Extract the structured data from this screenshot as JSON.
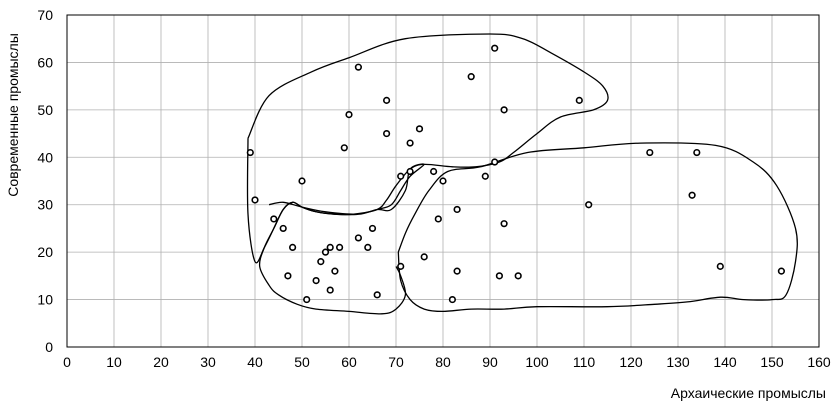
{
  "chart_data": {
    "type": "scatter",
    "title": "",
    "xlabel": "Архаические промыслы",
    "ylabel": "Современные промыслы",
    "xlim": [
      0,
      160
    ],
    "ylim": [
      0,
      70
    ],
    "xticks": [
      0,
      10,
      20,
      30,
      40,
      50,
      60,
      70,
      80,
      90,
      100,
      110,
      120,
      130,
      140,
      150,
      160
    ],
    "yticks": [
      0,
      10,
      20,
      30,
      40,
      50,
      60,
      70
    ],
    "grid": true,
    "legend": "none",
    "points": [
      {
        "x": 39,
        "y": 41
      },
      {
        "x": 40,
        "y": 31
      },
      {
        "x": 44,
        "y": 27
      },
      {
        "x": 46,
        "y": 25
      },
      {
        "x": 47,
        "y": 15
      },
      {
        "x": 48,
        "y": 21
      },
      {
        "x": 50,
        "y": 35
      },
      {
        "x": 51,
        "y": 10
      },
      {
        "x": 53,
        "y": 14
      },
      {
        "x": 54,
        "y": 18
      },
      {
        "x": 55,
        "y": 20
      },
      {
        "x": 56,
        "y": 21
      },
      {
        "x": 56,
        "y": 12
      },
      {
        "x": 57,
        "y": 16
      },
      {
        "x": 58,
        "y": 21
      },
      {
        "x": 59,
        "y": 42
      },
      {
        "x": 60,
        "y": 49
      },
      {
        "x": 62,
        "y": 23
      },
      {
        "x": 62,
        "y": 59
      },
      {
        "x": 64,
        "y": 21
      },
      {
        "x": 65,
        "y": 25
      },
      {
        "x": 66,
        "y": 11
      },
      {
        "x": 68,
        "y": 45
      },
      {
        "x": 68,
        "y": 52
      },
      {
        "x": 71,
        "y": 17
      },
      {
        "x": 71,
        "y": 36
      },
      {
        "x": 73,
        "y": 37
      },
      {
        "x": 73,
        "y": 43
      },
      {
        "x": 75,
        "y": 46
      },
      {
        "x": 76,
        "y": 19
      },
      {
        "x": 78,
        "y": 37
      },
      {
        "x": 79,
        "y": 27
      },
      {
        "x": 80,
        "y": 35
      },
      {
        "x": 82,
        "y": 10
      },
      {
        "x": 83,
        "y": 16
      },
      {
        "x": 83,
        "y": 29
      },
      {
        "x": 86,
        "y": 57
      },
      {
        "x": 89,
        "y": 36
      },
      {
        "x": 91,
        "y": 63
      },
      {
        "x": 91,
        "y": 39
      },
      {
        "x": 92,
        "y": 15
      },
      {
        "x": 93,
        "y": 26
      },
      {
        "x": 93,
        "y": 50
      },
      {
        "x": 96,
        "y": 15
      },
      {
        "x": 109,
        "y": 52
      },
      {
        "x": 111,
        "y": 30
      },
      {
        "x": 124,
        "y": 41
      },
      {
        "x": 133,
        "y": 32
      },
      {
        "x": 134,
        "y": 41
      },
      {
        "x": 139,
        "y": 17
      },
      {
        "x": 152,
        "y": 16
      }
    ],
    "regions": [
      {
        "shape": "upper-left",
        "path": [
          [
            38.5,
            44
          ],
          [
            43,
            53
          ],
          [
            52,
            58
          ],
          [
            60,
            61
          ],
          [
            72,
            65
          ],
          [
            90,
            66
          ],
          [
            97,
            65
          ],
          [
            103,
            62
          ],
          [
            110,
            58
          ],
          [
            114,
            55
          ],
          [
            115,
            52
          ],
          [
            112,
            50
          ],
          [
            105,
            48.5
          ],
          [
            100,
            45
          ],
          [
            95,
            41
          ],
          [
            92,
            39
          ],
          [
            87,
            38
          ],
          [
            82,
            38
          ],
          [
            76,
            38.5
          ],
          [
            73,
            37.5
          ],
          [
            70,
            34
          ],
          [
            68,
            31
          ],
          [
            66,
            29
          ],
          [
            61,
            28
          ],
          [
            57,
            28
          ],
          [
            53,
            28.5
          ],
          [
            50,
            29.5
          ],
          [
            48,
            30.5
          ],
          [
            46,
            29
          ],
          [
            44,
            25
          ],
          [
            42,
            21
          ],
          [
            40,
            18
          ],
          [
            38.5,
            28
          ],
          [
            38.5,
            44
          ]
        ]
      },
      {
        "shape": "lower-right",
        "path": [
          [
            70.5,
            20
          ],
          [
            72,
            24
          ],
          [
            74,
            28
          ],
          [
            77,
            33
          ],
          [
            81,
            37
          ],
          [
            88,
            38
          ],
          [
            98,
            41
          ],
          [
            110,
            42
          ],
          [
            122,
            43
          ],
          [
            138,
            42.5
          ],
          [
            146,
            39
          ],
          [
            151,
            34
          ],
          [
            155,
            25
          ],
          [
            155,
            18
          ],
          [
            153,
            11
          ],
          [
            150,
            10
          ],
          [
            144,
            10
          ],
          [
            139,
            10.5
          ],
          [
            132,
            9.5
          ],
          [
            125,
            9
          ],
          [
            115,
            8.5
          ],
          [
            100,
            8.5
          ],
          [
            93,
            8
          ],
          [
            86,
            8
          ],
          [
            80,
            7.5
          ],
          [
            76,
            8
          ],
          [
            73,
            10
          ],
          [
            71,
            14
          ],
          [
            70.5,
            20
          ]
        ]
      },
      {
        "shape": "lower-left",
        "path": [
          [
            43,
            30
          ],
          [
            46,
            30.5
          ],
          [
            50,
            29.5
          ],
          [
            55,
            28.5
          ],
          [
            62,
            28
          ],
          [
            66,
            29
          ],
          [
            69,
            29
          ],
          [
            72,
            33
          ],
          [
            73,
            37.5
          ],
          [
            76,
            38.5
          ],
          [
            73,
            36
          ],
          [
            71,
            33
          ],
          [
            69,
            30
          ],
          [
            66,
            29
          ],
          [
            62,
            28
          ],
          [
            57,
            28
          ],
          [
            53,
            28.5
          ],
          [
            50,
            29.5
          ],
          [
            48,
            30.5
          ],
          [
            46,
            29
          ],
          [
            44,
            25
          ],
          [
            42,
            21
          ],
          [
            41,
            17
          ],
          [
            43,
            13
          ],
          [
            45,
            11
          ],
          [
            49,
            9
          ],
          [
            53,
            8
          ],
          [
            60,
            7.5
          ],
          [
            67,
            7
          ],
          [
            70,
            8
          ],
          [
            72,
            11
          ],
          [
            71,
            15
          ],
          [
            70,
            17
          ]
        ]
      }
    ]
  }
}
